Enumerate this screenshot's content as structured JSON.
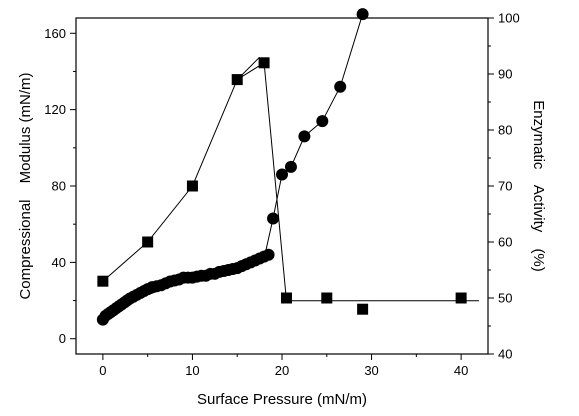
{
  "chart_data": {
    "type": "scatter",
    "xlabel": "Surface Pressure (mN/m)",
    "ylabel_left": [
      "Compressional",
      "Modulus (mN/m)"
    ],
    "ylabel_right": [
      "Enzymatic",
      "Activity",
      "(%)"
    ],
    "xlim": [
      -3,
      43
    ],
    "ylim_left": [
      -8,
      168
    ],
    "ylim_right": [
      40,
      100
    ],
    "x_ticks": [
      0,
      10,
      20,
      30,
      40
    ],
    "y_left_ticks": [
      0,
      40,
      80,
      120,
      160
    ],
    "y_right_ticks": [
      40,
      50,
      60,
      70,
      80,
      90,
      100
    ],
    "series": [
      {
        "axis": "left",
        "marker": "circle",
        "x": [
          0,
          0.3,
          0.6,
          0.9,
          1.2,
          1.5,
          1.8,
          2.1,
          2.4,
          2.7,
          3.0,
          3.4,
          3.8,
          4.2,
          4.6,
          5.0,
          5.5,
          6.0,
          6.5,
          7.0,
          7.5,
          8.0,
          8.5,
          9.0,
          9.5,
          10.0,
          10.5,
          11.0,
          11.5,
          12.0,
          12.5,
          13.0,
          13.5,
          14.0,
          14.5,
          15.0,
          15.5,
          16.0,
          16.5,
          17.0,
          17.5,
          18.0,
          18.5,
          19.0,
          20.0,
          21.0,
          22.5,
          24.5,
          26.5,
          29.0
        ],
        "y": [
          10,
          12,
          13,
          14,
          15,
          16,
          17,
          18,
          19,
          20,
          21,
          22,
          23,
          24,
          25,
          26,
          27,
          27.5,
          28,
          29,
          30,
          30.5,
          31,
          32,
          32,
          32,
          32.5,
          33,
          33,
          34,
          34,
          35,
          35.5,
          36,
          36.5,
          37,
          38,
          39,
          40,
          41,
          42,
          43,
          44,
          63,
          86,
          90,
          106,
          114,
          132,
          170
        ],
        "line_x": [
          0,
          2,
          5,
          8,
          10,
          13,
          15,
          17,
          18,
          19,
          20,
          21,
          22.5,
          24.5,
          26.5,
          29
        ],
        "line_y": [
          12,
          17,
          23,
          28,
          31,
          34,
          36,
          40,
          42,
          63,
          86,
          90,
          106,
          114,
          132,
          170
        ]
      },
      {
        "axis": "right",
        "marker": "square",
        "x": [
          0,
          5,
          10,
          15,
          18,
          20.5,
          25,
          29,
          40
        ],
        "y": [
          53,
          60,
          70,
          89,
          92,
          50,
          50,
          48,
          50
        ],
        "line_x": [
          0,
          5,
          10,
          15,
          18,
          20.5,
          25,
          29,
          40,
          42
        ],
        "line_y": [
          53,
          60,
          70,
          89,
          92,
          49.5,
          49.5,
          49.5,
          49.5,
          49.5
        ],
        "extra_segment_x": [
          15,
          17.5
        ],
        "extra_segment_y": [
          89,
          93
        ]
      }
    ]
  }
}
